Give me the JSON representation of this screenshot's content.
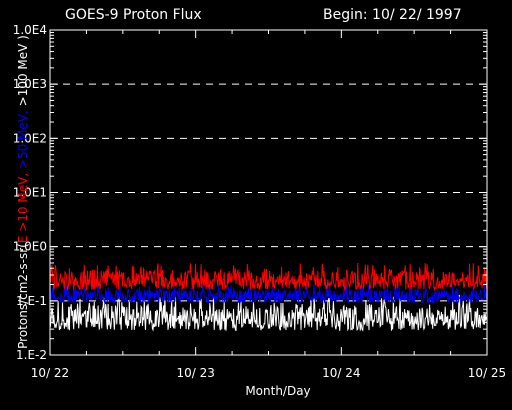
{
  "chart_data": {
    "type": "line",
    "title": "GOES-9 Proton Flux",
    "begin_label": "Begin: 10/ 22/ 1997",
    "xlabel": "Month/Day",
    "ylabel_parts": [
      {
        "text": "Protons/cm2-s-sr(",
        "color": "#ffffff"
      },
      {
        "text": "E >10 MeV, ",
        "color": "#ff0000"
      },
      {
        "text": ">50 MeV, ",
        "color": "#0000ff"
      },
      {
        "text": ">100 MeV )",
        "color": "#ffffff"
      }
    ],
    "y_scale": "log",
    "ylim": [
      0.01,
      10000
    ],
    "y_ticks": [
      {
        "value": 0.01,
        "label": "1.E-2"
      },
      {
        "value": 0.1,
        "label": "1.E-1"
      },
      {
        "value": 1,
        "label": "1.0E0"
      },
      {
        "value": 10,
        "label": "1.0E1"
      },
      {
        "value": 100,
        "label": "1.0E2"
      },
      {
        "value": 1000,
        "label": "1.0E3"
      },
      {
        "value": 10000,
        "label": "1.0E4"
      }
    ],
    "x_ticks": [
      "10/ 22",
      "10/ 23",
      "10/ 24",
      "10/ 25"
    ],
    "xlim_days": [
      0,
      3
    ],
    "grid": "dashed horizontal at each decade",
    "series": [
      {
        "color": "#ff0000",
        "base": 0.24,
        "low": 0.16,
        "high": 0.5
      },
      {
        "color": "#0000ff",
        "base": 0.12,
        "low": 0.09,
        "high": 0.2
      },
      {
        "color": "#ffffff",
        "base": 0.045,
        "low": 0.028,
        "high": 0.13
      }
    ]
  }
}
